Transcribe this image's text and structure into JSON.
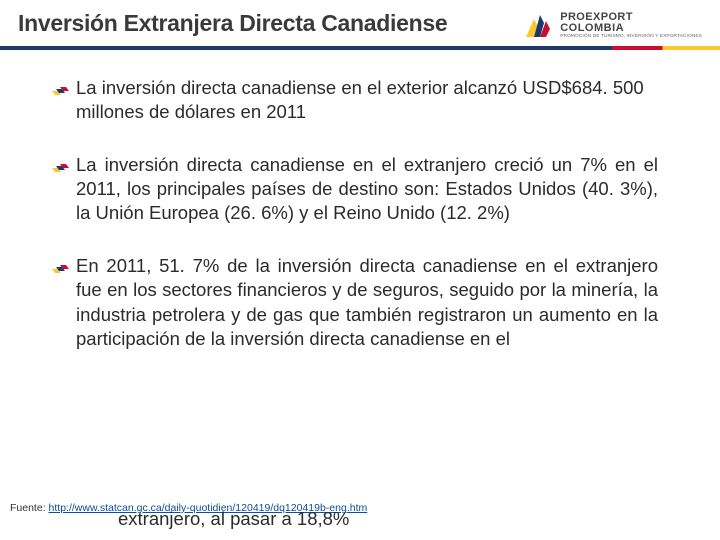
{
  "header": {
    "title": "Inversión Extranjera Directa Canadiense",
    "logo": {
      "main": "PROEXPORT",
      "sub": "COLOMBIA",
      "tagline": "PROMOCIÓN DE TURISMO, INVERSIÓN Y EXPORTACIONES",
      "colors": {
        "yellow": "#ffc72c",
        "blue": "#1a3a6e",
        "red": "#c8102e"
      }
    }
  },
  "divider": {
    "colors": {
      "blue": "#1a3a6e",
      "red": "#c8102e",
      "yellow": "#ffc72c"
    }
  },
  "bullets": [
    {
      "text": "La inversión directa canadiense en el exterior alcanzó USD$684. 500 millones de dólares en 2011",
      "justify": false
    },
    {
      "text": "La inversión directa canadiense en el extranjero creció un 7% en el 2011, los principales países de destino son: Estados Unidos (40. 3%), la Unión Europea (26. 6%) y el Reino Unido (12. 2%)",
      "justify": true
    },
    {
      "text": "En 2011, 51. 7% de la inversión directa canadiense en el extranjero fue en los sectores financieros y de seguros, seguido por la minería, la industria petrolera y de gas que también registraron un aumento en la participación de la inversión directa canadiense en el",
      "justify": true
    }
  ],
  "overflow_text": "extranjero, al pasar a 18,8%",
  "source": {
    "label": "Fuente: ",
    "link_text": "http://www.statcan.gc.ca/daily-quotidien/120419/dq120419b-eng.htm",
    "href": "http://www.statcan.gc.ca/daily-quotidien/120419/dq120419b-eng.htm"
  },
  "bullet_icon": {
    "yellow": "#ffc72c",
    "blue": "#1a3a6e",
    "red": "#c8102e"
  }
}
